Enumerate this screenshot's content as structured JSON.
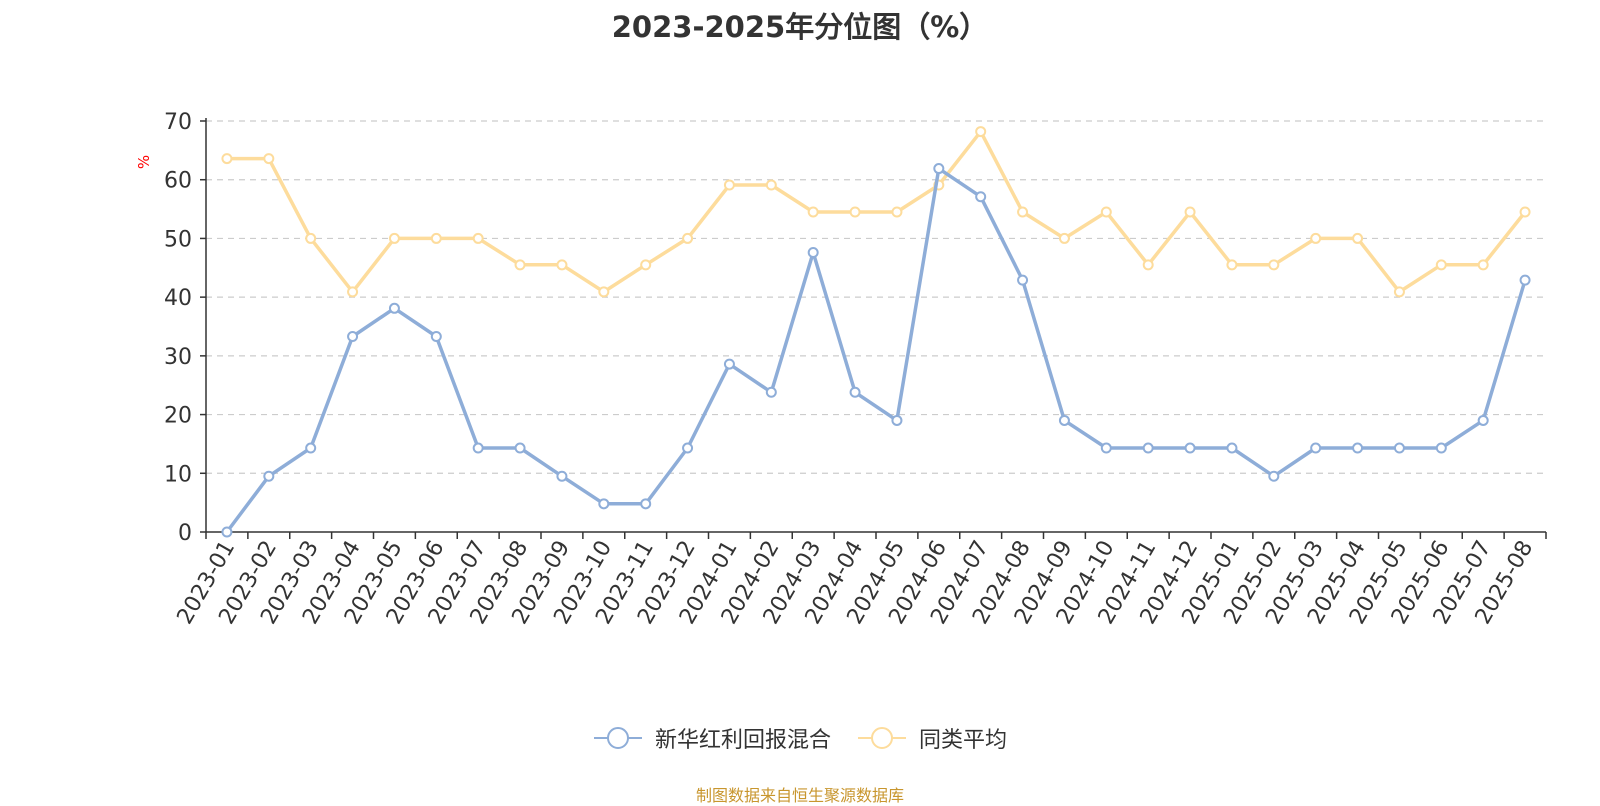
{
  "chart_data": {
    "type": "line",
    "title": "2023-2025年分位图（%）",
    "ylabel": "%",
    "xlabel": "",
    "ylim": [
      0,
      70
    ],
    "yticks": [
      0,
      10,
      20,
      30,
      40,
      50,
      60,
      70
    ],
    "grid": true,
    "legend_position": "bottom",
    "categories": [
      "2023-01",
      "2023-02",
      "2023-03",
      "2023-04",
      "2023-05",
      "2023-06",
      "2023-07",
      "2023-08",
      "2023-09",
      "2023-10",
      "2023-11",
      "2023-12",
      "2024-01",
      "2024-02",
      "2024-03",
      "2024-04",
      "2024-05",
      "2024-06",
      "2024-07",
      "2024-08",
      "2024-09",
      "2024-10",
      "2024-11",
      "2024-12",
      "2025-01",
      "2025-02",
      "2025-03",
      "2025-04",
      "2025-05",
      "2025-06",
      "2025-07",
      "2025-08"
    ],
    "series": [
      {
        "name": "新华红利回报混合",
        "color": "#8eadd8",
        "values": [
          0,
          9.5,
          14.3,
          33.3,
          38.1,
          33.3,
          14.3,
          14.3,
          9.5,
          4.8,
          4.8,
          14.3,
          28.6,
          23.8,
          47.6,
          23.8,
          19.0,
          61.9,
          57.1,
          42.9,
          19.0,
          14.3,
          14.3,
          14.3,
          14.3,
          9.5,
          14.3,
          14.3,
          14.3,
          14.3,
          19.0,
          42.9
        ]
      },
      {
        "name": "同类平均",
        "color": "#fddc9c",
        "values": [
          63.6,
          63.6,
          50.0,
          40.9,
          50.0,
          50.0,
          50.0,
          45.5,
          45.5,
          40.9,
          45.5,
          50.0,
          59.1,
          59.1,
          54.5,
          54.5,
          54.5,
          59.1,
          68.2,
          54.5,
          50.0,
          54.5,
          45.5,
          54.5,
          45.5,
          45.5,
          50.0,
          50.0,
          40.9,
          45.5,
          45.5,
          54.5
        ]
      }
    ]
  },
  "source_note": "制图数据来自恒生聚源数据库",
  "colors": {
    "axis": "#333333",
    "grid": "#cccccc",
    "ylabel": "#ff0000",
    "source": "#c8962e"
  }
}
